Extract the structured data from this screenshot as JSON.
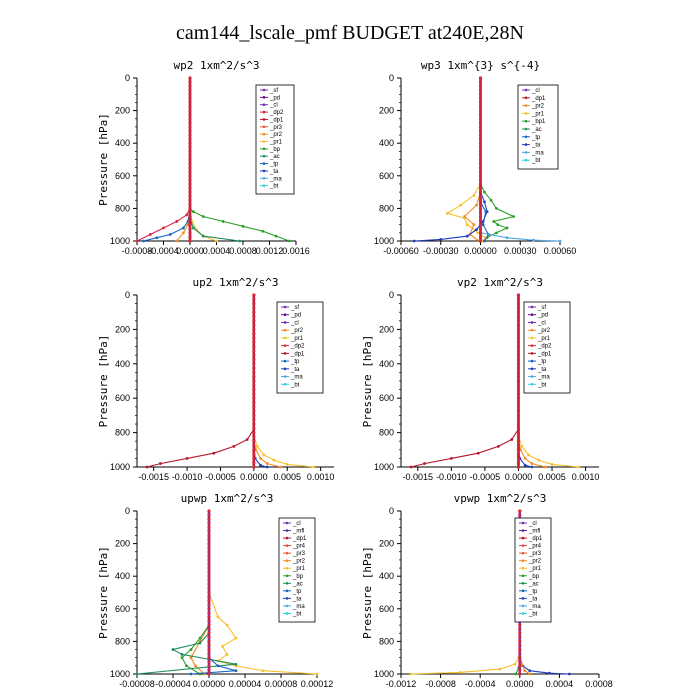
{
  "title": "cam144_lscale_pmf  BUDGET at240E,28N",
  "colors": {
    "sf": "#7b2ea8",
    "pd": "#6b0f8a",
    "cl": "#6f2fb0",
    "dp2": "#d7263d",
    "dp1": "#b5172a",
    "pr3": "#e8572f",
    "pr2": "#f28c28",
    "pr1": "#f6c12b",
    "bp": "#2ca02c",
    "ac": "#1f8f5a",
    "tp": "#1565c0",
    "ta": "#1f3fbf",
    "ma": "#4fa9e3",
    "bt": "#2bd3e0",
    "mfl": "#5a2a9c",
    "pr4": "#e8453c"
  },
  "chart_data": [
    {
      "type": "line",
      "title": "wp2  1xm^2/s^3",
      "ylabel": "Pressure [hPa]",
      "xlim": [
        -0.0008,
        0.0016
      ],
      "ylim": [
        1000,
        0
      ],
      "xticks": [
        "-0.0008",
        "-0.0004",
        "0.0000",
        "0.0004",
        "0.0008",
        "0.0012",
        "0.0016"
      ],
      "yticks": [
        "0",
        "200",
        "400",
        "600",
        "800",
        "1000"
      ],
      "legend": [
        "_sf",
        "_pd",
        "_cl",
        "_dp2",
        "_dp1",
        "_pr3",
        "_pr2",
        "_pr1",
        "_bp",
        "_ac",
        "_tp",
        "_ta",
        "_ma",
        "_bt"
      ],
      "series": [
        {
          "name": "_bp",
          "color": "bp",
          "x": [
            0,
            0,
            0,
            0,
            5e-05,
            0.0002,
            0.0005,
            0.0008,
            0.0011,
            0.0013,
            0.0015
          ],
          "y": [
            0,
            400,
            700,
            800,
            820,
            850,
            880,
            910,
            940,
            970,
            1000
          ]
        },
        {
          "name": "_dp2",
          "color": "dp2",
          "x": [
            0,
            0,
            0,
            -5e-05,
            -0.0002,
            -0.0004,
            -0.0006,
            -0.0008
          ],
          "y": [
            0,
            700,
            800,
            840,
            880,
            920,
            960,
            1000
          ]
        },
        {
          "name": "_tp",
          "color": "tp",
          "x": [
            0,
            0,
            -3e-05,
            -0.0001,
            -0.0003,
            -0.0005,
            -0.0007
          ],
          "y": [
            0,
            800,
            880,
            920,
            960,
            980,
            1000
          ]
        },
        {
          "name": "_pr1",
          "color": "pr1",
          "x": [
            0,
            0,
            3e-05,
            0.0001,
            0.0002,
            0.0004
          ],
          "y": [
            0,
            820,
            880,
            930,
            970,
            1000
          ]
        },
        {
          "name": "_pr2",
          "color": "pr2",
          "x": [
            0,
            0,
            -3e-05,
            -0.0001,
            -0.0002
          ],
          "y": [
            0,
            850,
            900,
            950,
            1000
          ]
        },
        {
          "name": "_ac",
          "color": "ac",
          "x": [
            0,
            0,
            5e-05,
            0.0002,
            0.00075
          ],
          "y": [
            0,
            860,
            920,
            970,
            1000
          ]
        },
        {
          "name": "_bt",
          "color": "bt",
          "x": [
            0,
            0,
            0,
            0
          ],
          "y": [
            0,
            500,
            900,
            1000
          ]
        },
        {
          "name": "_sf",
          "color": "sf",
          "x": [
            0,
            0,
            0,
            0
          ],
          "y": [
            0,
            500,
            900,
            1000
          ]
        }
      ]
    },
    {
      "type": "line",
      "title": "wp3  1xm^{3} s^{-4}",
      "ylabel": "",
      "xlim": [
        -0.0006,
        0.0006
      ],
      "ylim": [
        1000,
        0
      ],
      "xticks": [
        "-0.00060",
        "-0.00030",
        "0.00000",
        "0.00030",
        "0.00060"
      ],
      "yticks": [
        "0",
        "200",
        "400",
        "600",
        "800",
        "1000"
      ],
      "legend": [
        "_cl",
        "_dp1",
        "_pr2",
        "_pr1",
        "_bp1",
        "_ac",
        "_tp",
        "_ta",
        "_ma",
        "_bt"
      ],
      "series": [
        {
          "name": "_bp1",
          "color": "bp",
          "x": [
            0,
            0,
            3e-05,
            8e-05,
            0.00012,
            0.00025,
            0.0001,
            0.00013,
            0.0002,
            0.00012,
            5e-05,
            2e-05
          ],
          "y": [
            0,
            650,
            700,
            750,
            800,
            850,
            880,
            900,
            920,
            950,
            980,
            1000
          ]
        },
        {
          "name": "_pr1",
          "color": "pr1",
          "x": [
            0,
            0,
            -5e-05,
            -0.00015,
            -0.00025,
            -0.00012,
            -0.0001,
            -2e-05,
            4e-05,
            2e-05
          ],
          "y": [
            0,
            650,
            720,
            780,
            830,
            860,
            900,
            950,
            980,
            1000
          ]
        },
        {
          "name": "_pr2",
          "color": "pr2",
          "x": [
            0,
            0,
            -3e-05,
            -0.00012,
            -5e-05,
            -8e-05,
            -1e-05
          ],
          "y": [
            0,
            700,
            780,
            850,
            900,
            960,
            1000
          ]
        },
        {
          "name": "_ta",
          "color": "ta",
          "x": [
            0,
            0,
            3e-05,
            5e-05,
            2e-05,
            -3e-05,
            -0.0001,
            -0.0003,
            -0.0005
          ],
          "y": [
            0,
            700,
            760,
            820,
            880,
            930,
            970,
            990,
            1000
          ]
        },
        {
          "name": "_tp",
          "color": "tp",
          "x": [
            0,
            0,
            4e-05,
            2e-05,
            6e-05,
            3e-05
          ],
          "y": [
            0,
            760,
            820,
            900,
            960,
            1000
          ]
        },
        {
          "name": "_ma",
          "color": "ma",
          "x": [
            0,
            0,
            0.0002,
            0.0004,
            0.0006
          ],
          "y": [
            0,
            950,
            980,
            995,
            1000
          ]
        },
        {
          "name": "_dp1",
          "color": "dp1",
          "x": [
            0,
            0,
            0,
            0
          ],
          "y": [
            0,
            500,
            900,
            1000
          ]
        }
      ]
    },
    {
      "type": "line",
      "title": "up2  1xm^2/s^3",
      "ylabel": "Pressure [hPa]",
      "xlim": [
        -0.00175,
        0.0012
      ],
      "ylim": [
        1000,
        0
      ],
      "xticks": [
        "-0.0015",
        "-0.0010",
        "-0.0005",
        "0.0000",
        "0.0005",
        "0.0010"
      ],
      "yticks": [
        "0",
        "200",
        "400",
        "600",
        "800",
        "1000"
      ],
      "legend": [
        "_sf",
        "_pd",
        "_cl",
        "_pr2",
        "_pr1",
        "_dp2",
        "_dp1",
        "_tp",
        "_ta",
        "_ma",
        "_bt"
      ],
      "series": [
        {
          "name": "_dp1",
          "color": "dp1",
          "x": [
            0,
            0,
            -0.0001,
            -0.0003,
            -0.0006,
            -0.001,
            -0.0014,
            -0.0016
          ],
          "y": [
            0,
            780,
            840,
            880,
            920,
            950,
            980,
            1000
          ]
        },
        {
          "name": "_pr1",
          "color": "pr1",
          "x": [
            0,
            0,
            5e-05,
            0.00015,
            0.0003,
            0.0005,
            0.0009
          ],
          "y": [
            0,
            820,
            880,
            930,
            960,
            985,
            1000
          ]
        },
        {
          "name": "_pr2",
          "color": "pr2",
          "x": [
            0,
            0,
            3e-05,
            0.0001,
            0.0002,
            0.0004
          ],
          "y": [
            0,
            850,
            900,
            950,
            980,
            1000
          ]
        },
        {
          "name": "_ta",
          "color": "ta",
          "x": [
            0,
            0,
            2e-05,
            0.0001,
            0.0002
          ],
          "y": [
            0,
            900,
            950,
            990,
            1000
          ]
        },
        {
          "name": "_dp2",
          "color": "dp2",
          "x": [
            0,
            0,
            0,
            0
          ],
          "y": [
            0,
            500,
            900,
            1000
          ]
        },
        {
          "name": "_sf",
          "color": "sf",
          "x": [
            0,
            0,
            0,
            0
          ],
          "y": [
            0,
            500,
            900,
            1000
          ]
        }
      ]
    },
    {
      "type": "line",
      "title": "vp2  1xm^2/s^3",
      "ylabel": "Pressure [hPa]",
      "xlim": [
        -0.00175,
        0.0012
      ],
      "ylim": [
        1000,
        0
      ],
      "xticks": [
        "-0.0015",
        "-0.0010",
        "-0.0005",
        "0.0000",
        "0.0005",
        "0.0010"
      ],
      "yticks": [
        "0",
        "200",
        "400",
        "600",
        "800",
        "1000"
      ],
      "legend": [
        "_sf",
        "_pd",
        "_cl",
        "_pr2",
        "_pr1",
        "_dp2",
        "_dp1",
        "_tp",
        "_ta",
        "_ma",
        "_bt"
      ],
      "series": [
        {
          "name": "_dp1",
          "color": "dp1",
          "x": [
            0,
            0,
            -0.0001,
            -0.0003,
            -0.0006,
            -0.001,
            -0.0014,
            -0.0016
          ],
          "y": [
            0,
            780,
            840,
            880,
            920,
            950,
            980,
            1000
          ]
        },
        {
          "name": "_pr1",
          "color": "pr1",
          "x": [
            0,
            0,
            5e-05,
            0.00015,
            0.0003,
            0.0005,
            0.0009
          ],
          "y": [
            0,
            820,
            880,
            930,
            960,
            985,
            1000
          ]
        },
        {
          "name": "_pr2",
          "color": "pr2",
          "x": [
            0,
            0,
            3e-05,
            0.0001,
            0.0002,
            0.0004
          ],
          "y": [
            0,
            850,
            900,
            950,
            980,
            1000
          ]
        },
        {
          "name": "_ta",
          "color": "ta",
          "x": [
            0,
            0,
            2e-05,
            0.0001,
            0.0002
          ],
          "y": [
            0,
            900,
            950,
            990,
            1000
          ]
        },
        {
          "name": "_dp2",
          "color": "dp2",
          "x": [
            0,
            0,
            0,
            0
          ],
          "y": [
            0,
            500,
            900,
            1000
          ]
        },
        {
          "name": "_sf",
          "color": "sf",
          "x": [
            0,
            0,
            0,
            0
          ],
          "y": [
            0,
            500,
            900,
            1000
          ]
        }
      ]
    },
    {
      "type": "line",
      "title": "upwp  1xm^2/s^3",
      "ylabel": "Pressure [hPa]",
      "xlim": [
        -8e-05,
        0.00012
      ],
      "ylim": [
        1000,
        0
      ],
      "xticks": [
        "-0.00008",
        "-0.00004",
        "0.00000",
        "0.00004",
        "0.00008",
        "0.00012"
      ],
      "yticks": [
        "0",
        "200",
        "400",
        "600",
        "800",
        "1000"
      ],
      "legend": [
        "_cl",
        "_mfl",
        "_dp1",
        "_pr4",
        "_pr3",
        "_pr2",
        "_pr1",
        "_bp",
        "_ac",
        "_tp",
        "_ta",
        "_ma",
        "_bt"
      ],
      "series": [
        {
          "name": "_pr1",
          "color": "pr1",
          "x": [
            0,
            0,
            1e-05,
            2e-05,
            3e-05,
            1.5e-05,
            2e-05,
            1e-05,
            3e-05,
            6e-05,
            0.00012
          ],
          "y": [
            0,
            500,
            650,
            700,
            780,
            830,
            880,
            920,
            950,
            980,
            1000
          ]
        },
        {
          "name": "_pr2",
          "color": "pr2",
          "x": [
            0,
            0,
            -1e-05,
            -2e-05,
            -1.5e-05,
            -5e-06
          ],
          "y": [
            0,
            700,
            800,
            900,
            950,
            1000
          ]
        },
        {
          "name": "_bp",
          "color": "bp",
          "x": [
            0,
            0,
            -1e-05,
            -2e-05,
            -3e-05,
            -2.5e-05,
            -1e-05
          ],
          "y": [
            0,
            700,
            780,
            850,
            900,
            950,
            1000
          ]
        },
        {
          "name": "_ac",
          "color": "ac",
          "x": [
            0,
            0,
            -1e-05,
            -4e-05,
            -3e-05,
            3e-05,
            -8e-05
          ],
          "y": [
            0,
            750,
            810,
            850,
            880,
            940,
            1000
          ]
        },
        {
          "name": "_tp",
          "color": "tp",
          "x": [
            0,
            0,
            1e-05,
            3e-05,
            -2e-05
          ],
          "y": [
            0,
            900,
            950,
            980,
            1000
          ]
        },
        {
          "name": "_dp1",
          "color": "dp1",
          "x": [
            0,
            0,
            0,
            0
          ],
          "y": [
            0,
            500,
            900,
            1000
          ]
        },
        {
          "name": "_cl",
          "color": "cl",
          "x": [
            0,
            0,
            0,
            0
          ],
          "y": [
            0,
            500,
            900,
            1000
          ]
        }
      ]
    },
    {
      "type": "line",
      "title": "vpwp  1xm^2/s^3",
      "ylabel": "Pressure [hPa]",
      "xlim": [
        -0.0012,
        0.0008
      ],
      "ylim": [
        1000,
        0
      ],
      "xticks": [
        "-0.0012",
        "-0.0008",
        "-0.0004",
        "0.0000",
        "0.0004",
        "0.0008"
      ],
      "yticks": [
        "0",
        "200",
        "400",
        "600",
        "800",
        "1000"
      ],
      "legend": [
        "_cl",
        "_mfl",
        "_dp1",
        "_pr4",
        "_pr3",
        "_pr2",
        "_pr1",
        "_bp",
        "_ac",
        "_tp",
        "_ta",
        "_ma",
        "_bt"
      ],
      "series": [
        {
          "name": "_pr1",
          "color": "pr1",
          "x": [
            0,
            0,
            -1e-05,
            -5e-05,
            -0.0002,
            -0.0006,
            -0.0011
          ],
          "y": [
            0,
            850,
            900,
            940,
            970,
            990,
            1000
          ]
        },
        {
          "name": "_ta",
          "color": "ta",
          "x": [
            0,
            0,
            3e-05,
            0.0001,
            0.0003,
            0.0005
          ],
          "y": [
            0,
            900,
            950,
            980,
            995,
            1000
          ]
        },
        {
          "name": "_pr2",
          "color": "pr2",
          "x": [
            0,
            0,
            2e-05,
            5e-05,
            0.0001
          ],
          "y": [
            0,
            880,
            940,
            980,
            1000
          ]
        },
        {
          "name": "_bp",
          "color": "bp",
          "x": [
            0,
            0,
            -1e-05,
            -4e-05
          ],
          "y": [
            0,
            900,
            960,
            1000
          ]
        },
        {
          "name": "_dp1",
          "color": "dp1",
          "x": [
            0,
            0,
            0,
            0
          ],
          "y": [
            0,
            500,
            900,
            1000
          ]
        },
        {
          "name": "_cl",
          "color": "cl",
          "x": [
            0,
            0,
            0,
            0
          ],
          "y": [
            0,
            500,
            900,
            1000
          ]
        }
      ]
    }
  ]
}
